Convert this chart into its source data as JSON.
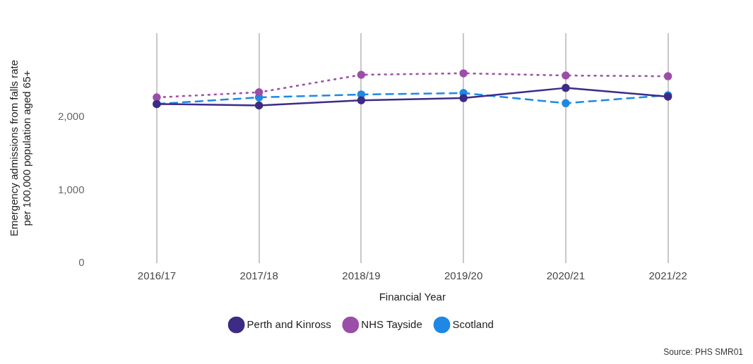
{
  "chart_data": {
    "type": "line",
    "xlabel": "Financial Year",
    "ylabel": "Emergency admissions from falls rate\nper 100,000 population aged 65+",
    "categories": [
      "2016/17",
      "2017/18",
      "2018/19",
      "2019/20",
      "2020/21",
      "2021/22"
    ],
    "series": [
      {
        "name": "Perth and Kinross",
        "color": "#3d2b86",
        "line_style": "solid",
        "values": [
          2180,
          2160,
          2230,
          2260,
          2400,
          2280
        ]
      },
      {
        "name": "NHS Tayside",
        "color": "#9b4ea8",
        "line_style": "dotted",
        "values": [
          2270,
          2340,
          2580,
          2600,
          2570,
          2560
        ]
      },
      {
        "name": "Scotland",
        "color": "#1e88e5",
        "line_style": "dashed",
        "values": [
          2180,
          2270,
          2310,
          2330,
          2190,
          2300
        ]
      }
    ],
    "ylim": [
      0,
      3150
    ],
    "yticks": [
      0,
      {
        "value": 1000,
        "label": "1,000"
      },
      {
        "value": 2000,
        "label": "2,000"
      }
    ],
    "grid": "x",
    "legend": "bottom",
    "marker": "circle",
    "annotations": [
      "Source: PHS SMR01"
    ]
  }
}
